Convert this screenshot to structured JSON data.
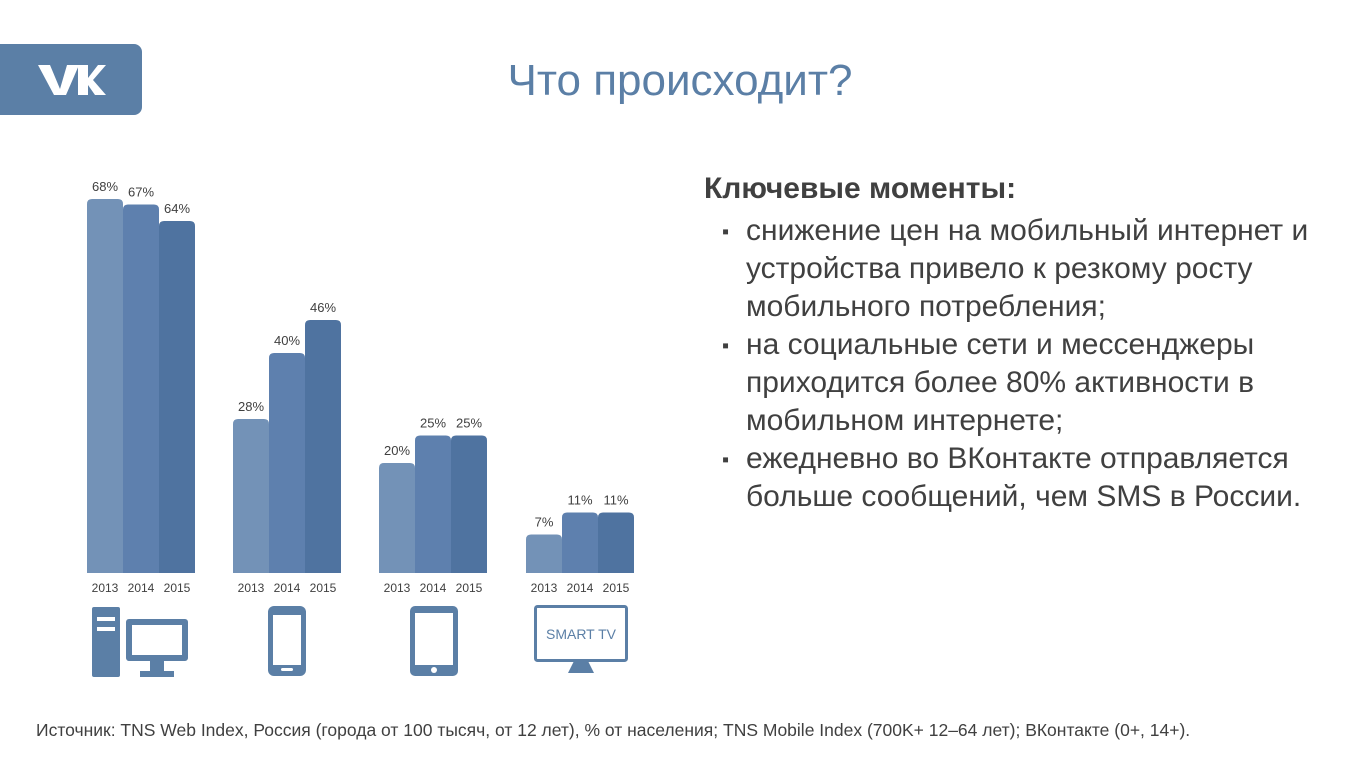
{
  "title": "Что происходит?",
  "colors": {
    "accent": "#5b7fa6",
    "bar_2013": "#7392b7",
    "bar_2014": "#5e80ae",
    "bar_2015": "#4f73a0"
  },
  "chart_data": {
    "type": "bar",
    "title": "",
    "categories": [
      "",
      "",
      "",
      ""
    ],
    "icons": [
      "desktop-computer-icon",
      "smartphone-icon",
      "tablet-icon",
      "smart-tv-icon"
    ],
    "tv_label": "SMART TV",
    "series": [
      {
        "name": "2013",
        "values": [
          68,
          28,
          20,
          7
        ]
      },
      {
        "name": "2014",
        "values": [
          67,
          40,
          25,
          11
        ]
      },
      {
        "name": "2015",
        "values": [
          64,
          46,
          25,
          11
        ]
      }
    ],
    "value_labels": [
      [
        "68%",
        "67%",
        "64%"
      ],
      [
        "28%",
        "40%",
        "46%"
      ],
      [
        "20%",
        "25%",
        "25%"
      ],
      [
        "7%",
        "11%",
        "11%"
      ]
    ],
    "xlabel": "",
    "ylabel": "",
    "ylim": [
      0,
      70
    ],
    "grid": false,
    "legend": "none"
  },
  "key_points": {
    "heading": "Ключевые моменты:",
    "items": [
      "снижение цен на мобильный интернет и устройства привело к резкому росту мобильного потребления;",
      "на социальные сети и мессенджеры приходится более 80% активности в мобильном интернете;",
      "ежедневно во ВКонтакте отправляется больше сообщений, чем SMS в России."
    ]
  },
  "source": "Источник: TNS Web Index, Россия (города от 100 тысяч, от 12 лет), % от населения; TNS Mobile Index (700K+ 12–64 лет); ВКонтакте (0+, 14+)."
}
